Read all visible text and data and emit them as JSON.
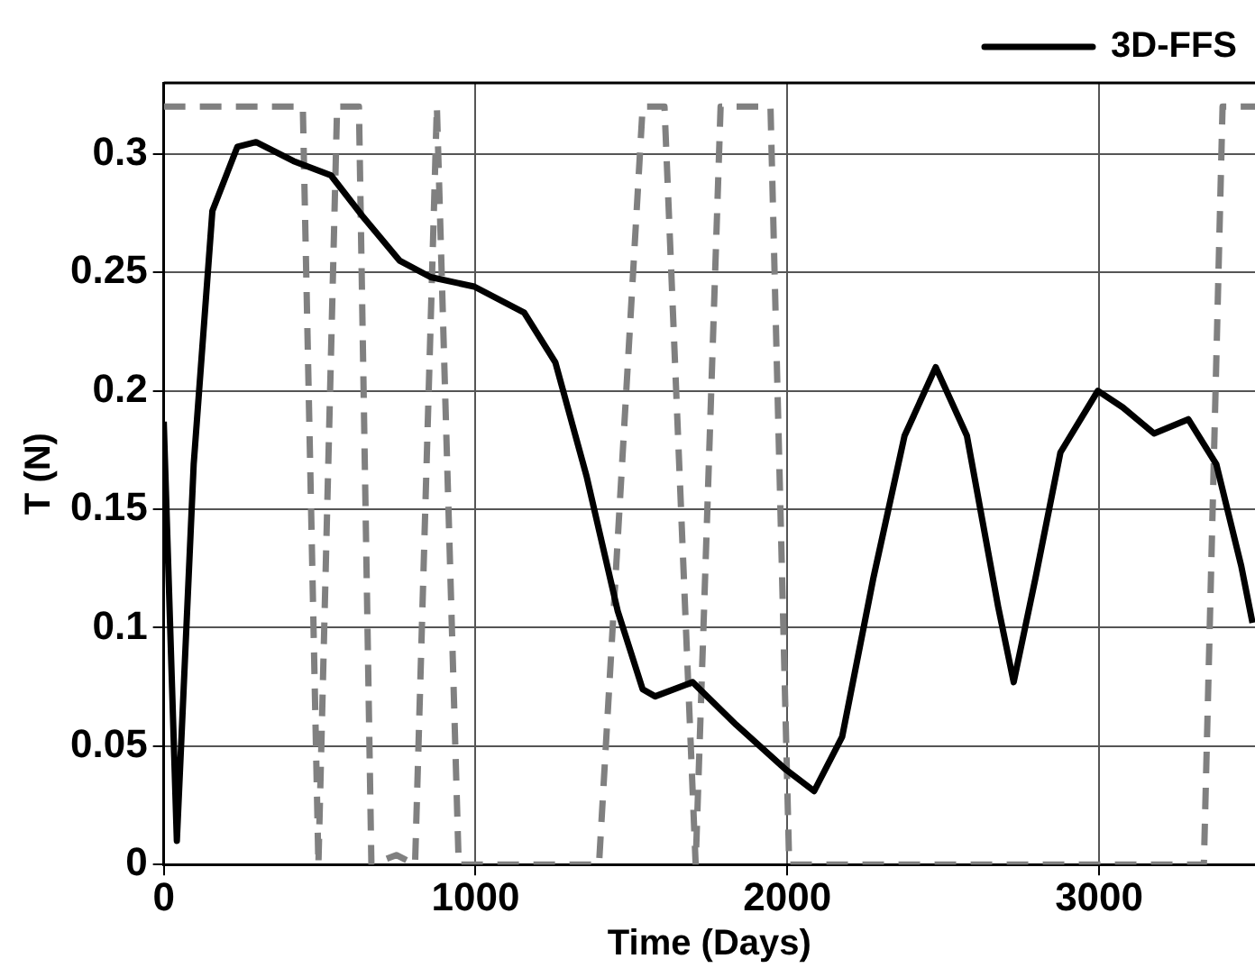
{
  "chart_data": {
    "type": "line",
    "xlabel": "Time (Days)",
    "ylabel": "T (N)",
    "xlim": [
      0,
      3500
    ],
    "ylim": [
      0,
      0.33
    ],
    "xticks": [
      0,
      1000,
      2000,
      3000
    ],
    "yticks": [
      0,
      0.05,
      0.1,
      0.15,
      0.2,
      0.25,
      0.3
    ],
    "grid": true,
    "legend": "top right",
    "marker": "none",
    "series": [
      {
        "name": "3D-FFS",
        "color": "#000000",
        "line_style": "solid",
        "x": [
          0,
          42,
          96,
          156,
          236,
          296,
          416,
          536,
          636,
          756,
          856,
          996,
          1156,
          1256,
          1356,
          1456,
          1536,
          1576,
          1696,
          1836,
          1996,
          2086,
          2176,
          2276,
          2376,
          2476,
          2576,
          2676,
          2726,
          2796,
          2876,
          2996,
          3076,
          3176,
          3286,
          3376,
          3456,
          3492
        ],
        "values": [
          0.187,
          0.01,
          0.169,
          0.276,
          0.303,
          0.305,
          0.297,
          0.291,
          0.274,
          0.255,
          0.248,
          0.244,
          0.233,
          0.212,
          0.164,
          0.107,
          0.074,
          0.071,
          0.077,
          0.059,
          0.04,
          0.031,
          0.054,
          0.121,
          0.181,
          0.21,
          0.181,
          0.109,
          0.077,
          0.121,
          0.174,
          0.2,
          0.193,
          0.182,
          0.188,
          0.169,
          0.126,
          0.102
        ]
      },
      {
        "color": "#808080",
        "line_style": "dashed",
        "x": [
          0,
          446,
          496,
          556,
          626,
          666,
          746,
          806,
          876,
          946,
          1396,
          1536,
          1606,
          1706,
          1786,
          1946,
          2006,
          3336,
          3396,
          3500
        ],
        "values": [
          0.32,
          0.32,
          0,
          0.32,
          0.32,
          0,
          0.004,
          0,
          0.32,
          0,
          0,
          0.32,
          0.32,
          0,
          0.32,
          0.32,
          0,
          0,
          0.32,
          0.32
        ]
      }
    ]
  }
}
